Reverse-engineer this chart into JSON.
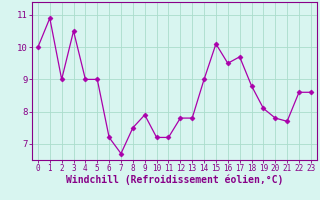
{
  "x": [
    0,
    1,
    2,
    3,
    4,
    5,
    6,
    7,
    8,
    9,
    10,
    11,
    12,
    13,
    14,
    15,
    16,
    17,
    18,
    19,
    20,
    21,
    22,
    23
  ],
  "y": [
    10.0,
    10.9,
    9.0,
    10.5,
    9.0,
    9.0,
    7.2,
    6.7,
    7.5,
    7.9,
    7.2,
    7.2,
    7.8,
    7.8,
    9.0,
    10.1,
    9.5,
    9.7,
    8.8,
    8.1,
    7.8,
    7.7,
    8.6,
    8.6
  ],
  "line_color": "#aa00aa",
  "marker": "D",
  "marker_size": 2.5,
  "line_width": 0.9,
  "bg_color": "#d8f5f0",
  "grid_color": "#aaddcc",
  "xlabel": "Windchill (Refroidissement éolien,°C)",
  "xlabel_color": "#880088",
  "ylim": [
    6.5,
    11.4
  ],
  "yticks": [
    7,
    8,
    9,
    10,
    11
  ],
  "xticks": [
    0,
    1,
    2,
    3,
    4,
    5,
    6,
    7,
    8,
    9,
    10,
    11,
    12,
    13,
    14,
    15,
    16,
    17,
    18,
    19,
    20,
    21,
    22,
    23
  ],
  "tick_color": "#880088",
  "tick_fontsize": 5.5,
  "xlabel_fontsize": 7.0,
  "spine_color": "#880088"
}
